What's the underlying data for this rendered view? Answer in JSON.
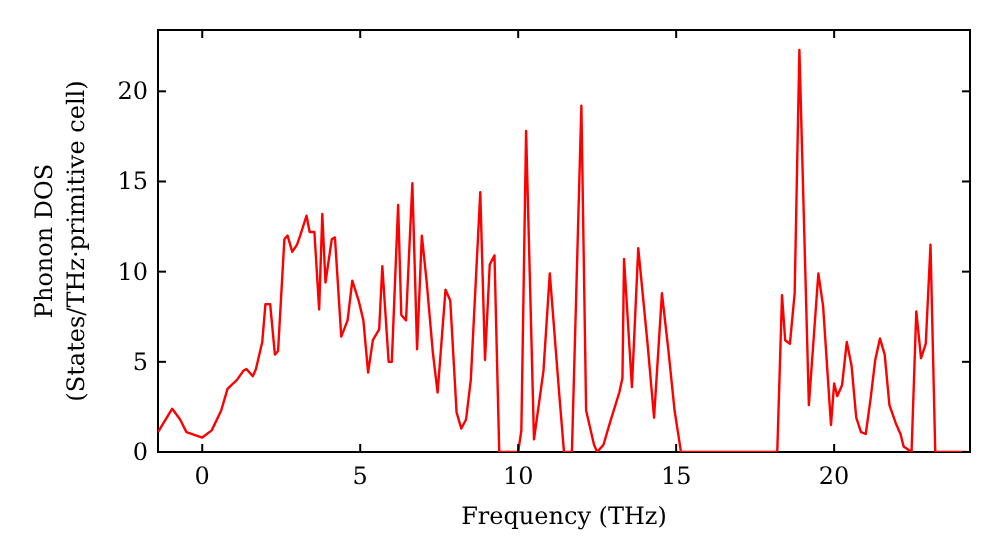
{
  "chart_data": {
    "type": "line",
    "xlabel": "Frequency (THz)",
    "ylabel": "Phonon DOS\n(States/THz·primitive cell)",
    "xlim": [
      -1.4,
      24.3
    ],
    "ylim": [
      0,
      23.4
    ],
    "xticks": [
      0,
      5,
      10,
      15,
      20
    ],
    "yticks": [
      0,
      5,
      10,
      15,
      20
    ],
    "grid": false,
    "marker": "none",
    "line_style": "solid",
    "series": [
      {
        "color": "#ff0000",
        "x": [
          -1.4,
          -0.95,
          -0.7,
          -0.5,
          0,
          0.3,
          0.6,
          0.8,
          1.1,
          1.3,
          1.4,
          1.6,
          1.7,
          1.9,
          2.0,
          2.15,
          2.3,
          2.4,
          2.6,
          2.7,
          2.85,
          3.0,
          3.1,
          3.3,
          3.4,
          3.55,
          3.7,
          3.8,
          3.9,
          4.1,
          4.2,
          4.4,
          4.6,
          4.75,
          4.95,
          5.1,
          5.25,
          5.4,
          5.6,
          5.7,
          5.9,
          6.0,
          6.2,
          6.3,
          6.45,
          6.65,
          6.8,
          6.95,
          7.1,
          7.3,
          7.45,
          7.7,
          7.85,
          8.05,
          8.2,
          8.35,
          8.5,
          8.8,
          8.95,
          9.1,
          9.25,
          9.4,
          10.0,
          10.1,
          10.25,
          10.5,
          10.8,
          11.0,
          11.3,
          11.45,
          11.7,
          12.0,
          12.15,
          12.4,
          12.5,
          12.7,
          12.9,
          13.2,
          13.3,
          13.35,
          13.6,
          13.8,
          14.1,
          14.3,
          14.55,
          14.75,
          14.95,
          15.1,
          15.15,
          18.2,
          18.35,
          18.45,
          18.6,
          18.75,
          18.9,
          19.2,
          19.5,
          19.65,
          19.9,
          20.0,
          20.1,
          20.25,
          20.4,
          20.55,
          20.7,
          20.85,
          21.0,
          21.15,
          21.3,
          21.45,
          21.6,
          21.75,
          21.95,
          22.1,
          22.2,
          22.45,
          22.6,
          22.75,
          22.9,
          23.05,
          23.2,
          24.2
        ],
        "values": [
          1.1,
          2.4,
          1.8,
          1.1,
          0.8,
          1.2,
          2.3,
          3.5,
          4.0,
          4.5,
          4.6,
          4.2,
          4.6,
          6.1,
          8.2,
          8.2,
          5.4,
          5.6,
          11.8,
          12.0,
          11.1,
          11.5,
          12.0,
          13.1,
          12.2,
          12.2,
          7.9,
          13.2,
          9.4,
          11.8,
          11.9,
          6.4,
          7.3,
          9.5,
          8.4,
          7.3,
          4.4,
          6.2,
          6.8,
          10.3,
          5.0,
          5.0,
          13.7,
          7.6,
          7.3,
          14.9,
          5.7,
          12.0,
          9.5,
          5.5,
          3.3,
          9.0,
          8.4,
          2.2,
          1.3,
          1.8,
          4.0,
          14.4,
          5.1,
          10.4,
          10.9,
          0,
          0,
          1.2,
          17.8,
          0.7,
          4.5,
          9.9,
          3.2,
          0,
          0,
          19.2,
          2.3,
          0.4,
          0,
          0.4,
          1.6,
          3.3,
          4.1,
          10.7,
          3.6,
          11.3,
          5.9,
          1.9,
          8.8,
          5.7,
          2.3,
          0.6,
          0,
          0,
          8.7,
          6.2,
          6.0,
          8.8,
          22.3,
          2.6,
          9.9,
          8.1,
          1.5,
          3.8,
          3.1,
          3.7,
          6.1,
          4.8,
          1.9,
          1.1,
          1.0,
          2.9,
          5.1,
          6.3,
          5.4,
          2.6,
          1.6,
          1.0,
          0.3,
          0,
          7.8,
          5.2,
          6.0,
          11.5,
          0,
          0
        ]
      }
    ]
  }
}
